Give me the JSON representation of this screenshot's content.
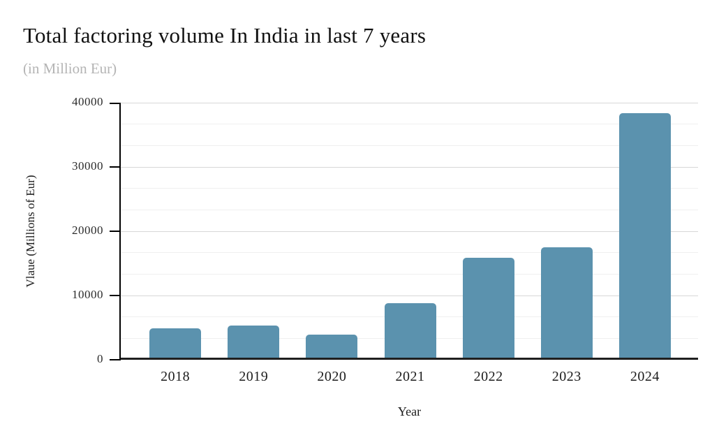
{
  "chart_data": {
    "type": "bar",
    "title": "Total factoring volume In India in last 7 years",
    "subtitle": "(in Million Eur)",
    "categories": [
      "2018",
      "2019",
      "2020",
      "2021",
      "2022",
      "2023",
      "2024"
    ],
    "values": [
      4532,
      5025,
      3553,
      8506,
      15561,
      17190,
      38000
    ],
    "xlabel": "Year",
    "ylabel": "Vlaue (Millions of Eur)",
    "ylim": [
      0,
      40000
    ],
    "y_ticks": [
      0,
      10000,
      20000,
      30000,
      40000
    ],
    "y_tick_labels": [
      "0",
      "10000",
      "20000",
      "30000",
      "40000"
    ],
    "minor_gridlines_per_major": 2,
    "grid": "horizontal",
    "legend_position": "none",
    "bar_color": "#5b92ae",
    "colors": {
      "title": "#111111",
      "subtitle": "#b4b4b4",
      "axis_line": "#000000",
      "baseline": "#1f1f1f",
      "major_gridline": "#d7d7d7",
      "minor_gridline": "#efefef",
      "tick_label": "#2b2b2b"
    }
  }
}
